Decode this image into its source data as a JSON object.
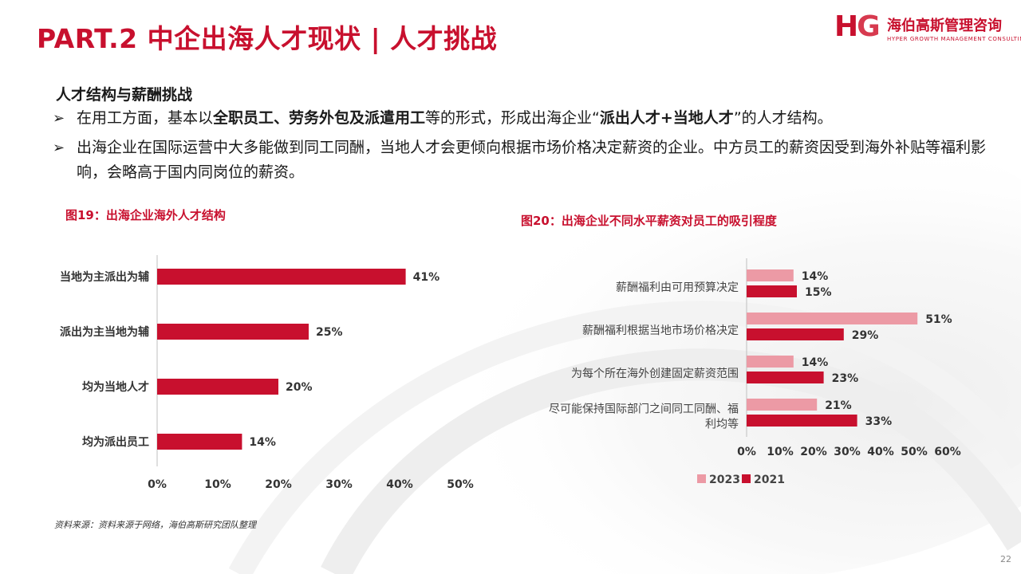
{
  "header": {
    "title": "PART.2 中企出海人才现状 | 人才挑战",
    "logo_mark_h": "H",
    "logo_mark_g": "G",
    "logo_cn": "海伯高斯管理咨询",
    "logo_en": "HYPER GROWTH MANAGEMENT CONSULTING"
  },
  "content": {
    "heading": "人才结构与薪酬挑战",
    "bullet_mark": "➢",
    "bullet1": {
      "pre": "在用工方面，基本以",
      "bold1": "全职员工、劳务外包及派遣用工",
      "mid": "等的形式，形成出海企业“",
      "bold2": "派出人才+当地人才",
      "post": "”的人才结构。"
    },
    "bullet2": "出海企业在国际运营中大多能做到同工同酬，当地人才会更倾向根据市场价格决定薪资的企业。中方员工的薪资因受到海外补贴等福利影响，会略高于国内同岗位的薪资。"
  },
  "chart_data": [
    {
      "type": "bar",
      "orientation": "horizontal",
      "title": "图19：出海企业海外人才结构",
      "categories": [
        "当地为主派出为辅",
        "派出为主当地为辅",
        "均为当地人才",
        "均为派出员工"
      ],
      "values": [
        41,
        25,
        20,
        14
      ],
      "value_labels": [
        "41%",
        "25%",
        "20%",
        "14%"
      ],
      "xlim": [
        0,
        50
      ],
      "xticks": [
        "0%",
        "10%",
        "20%",
        "30%",
        "40%",
        "50%"
      ],
      "color": "#c8102e",
      "grid": false
    },
    {
      "type": "bar",
      "orientation": "horizontal",
      "title": "图20：出海企业不同水平薪资对员工的吸引程度",
      "categories": [
        [
          "薪酬福利由可用预算决定"
        ],
        [
          "薪酬福利根据当地市场价格决定"
        ],
        [
          "为每个所在海外创建固定薪资范围"
        ],
        [
          "尽可能保持国际部门之间同工同酬、福",
          "利均等"
        ]
      ],
      "series": [
        {
          "name": "2023",
          "values": [
            14,
            51,
            14,
            21
          ],
          "labels": [
            "14%",
            "51%",
            "14%",
            "21%"
          ],
          "color": "#ec9aa5"
        },
        {
          "name": "2021",
          "values": [
            15,
            29,
            23,
            33
          ],
          "labels": [
            "15%",
            "29%",
            "23%",
            "33%"
          ],
          "color": "#c8102e"
        }
      ],
      "xlim": [
        0,
        60
      ],
      "xticks": [
        "0%",
        "10%",
        "20%",
        "30%",
        "40%",
        "50%",
        "60%"
      ],
      "legend": "bottom",
      "grid": false
    }
  ],
  "footer": {
    "source": "资料来源：资料来源于网络，海伯高斯研究团队整理",
    "page": "22"
  }
}
